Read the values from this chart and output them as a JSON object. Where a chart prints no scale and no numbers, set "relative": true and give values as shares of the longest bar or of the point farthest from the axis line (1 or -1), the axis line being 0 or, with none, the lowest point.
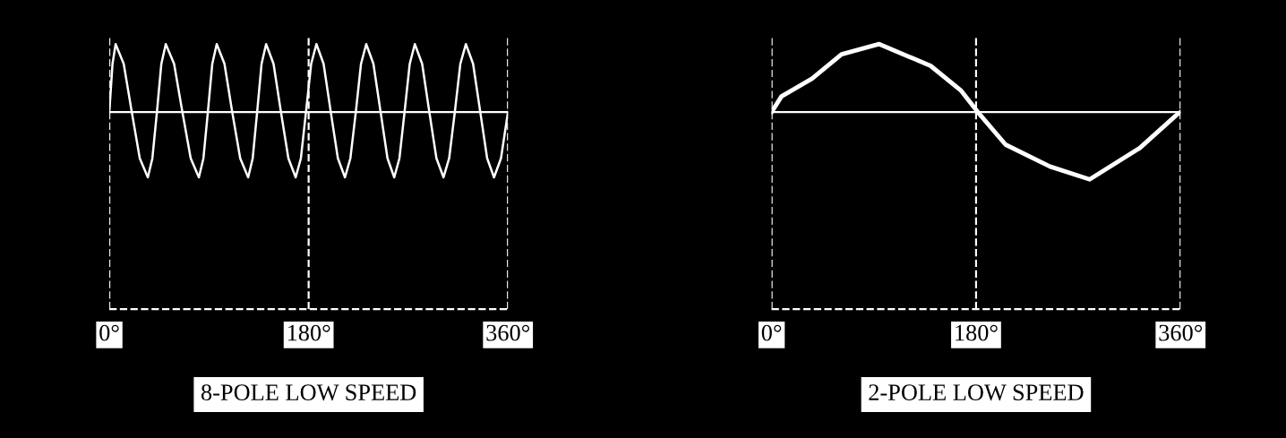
{
  "chart_data": [
    {
      "type": "line",
      "title": "8-POLE LOW SPEED",
      "relative": true,
      "xlim": [
        0,
        360
      ],
      "xticks": [
        {
          "value": 0,
          "label": "0°"
        },
        {
          "value": 180,
          "label": "180°"
        },
        {
          "value": 360,
          "label": "360°"
        }
      ],
      "x": [
        0,
        2.9,
        5.7,
        13,
        20.3,
        27.5,
        34.8,
        38.9,
        43,
        47,
        51,
        58.5,
        66,
        73.5,
        80.9,
        85,
        89,
        93,
        97,
        104,
        111,
        118.2,
        125.4,
        129.5,
        133.5,
        137.5,
        141.6,
        148.3,
        155,
        161.7,
        168.3,
        173,
        177.6,
        182.3,
        187,
        193.5,
        200,
        206.4,
        212.8,
        217.7,
        222.6,
        227.3,
        232,
        238.5,
        245,
        251.2,
        257.3,
        262,
        266.6,
        271.3,
        275.9,
        282.5,
        289,
        295.4,
        301.8,
        306.9,
        312,
        317,
        322,
        328.5,
        335,
        341.2,
        347.4,
        353.7,
        360
      ],
      "series": [
        {
          "color": "#ffffff",
          "values": [
            0,
            0.71,
            1,
            0.71,
            0,
            -0.68,
            -0.96,
            -0.68,
            0,
            0.71,
            1,
            0.71,
            0,
            -0.68,
            -0.96,
            -0.68,
            0,
            0.71,
            1,
            0.71,
            0,
            -0.68,
            -0.96,
            -0.68,
            0,
            0.71,
            1,
            0.71,
            0,
            -0.68,
            -0.96,
            -0.68,
            0,
            0.71,
            1,
            0.71,
            0,
            -0.68,
            -0.96,
            -0.68,
            0,
            0.71,
            1,
            0.71,
            0,
            -0.68,
            -0.96,
            -0.68,
            0,
            0.71,
            1,
            0.71,
            0,
            -0.68,
            -0.96,
            -0.68,
            0,
            0.71,
            1,
            0.71,
            0,
            -0.68,
            -0.96,
            -0.68,
            0
          ]
        }
      ],
      "grid": "x",
      "line_style": "solid"
    },
    {
      "type": "line",
      "title": "2-POLE LOW SPEED",
      "relative": true,
      "xlim": [
        0,
        360
      ],
      "xticks": [
        {
          "value": 0,
          "label": "0°"
        },
        {
          "value": 180,
          "label": "180°"
        },
        {
          "value": 360,
          "label": "360°"
        }
      ],
      "x": [
        0,
        8.7,
        35.5,
        61.6,
        94.7,
        140,
        166.5,
        181.5,
        206,
        245,
        280,
        324,
        356,
        360
      ],
      "series": [
        {
          "color": "#ffffff",
          "values": [
            0,
            0.23,
            0.49,
            0.85,
            1,
            0.68,
            0.32,
            0,
            -0.48,
            -0.8,
            -0.99,
            -0.53,
            -0.05,
            0
          ]
        }
      ],
      "grid": "x",
      "line_style": "solid"
    }
  ]
}
